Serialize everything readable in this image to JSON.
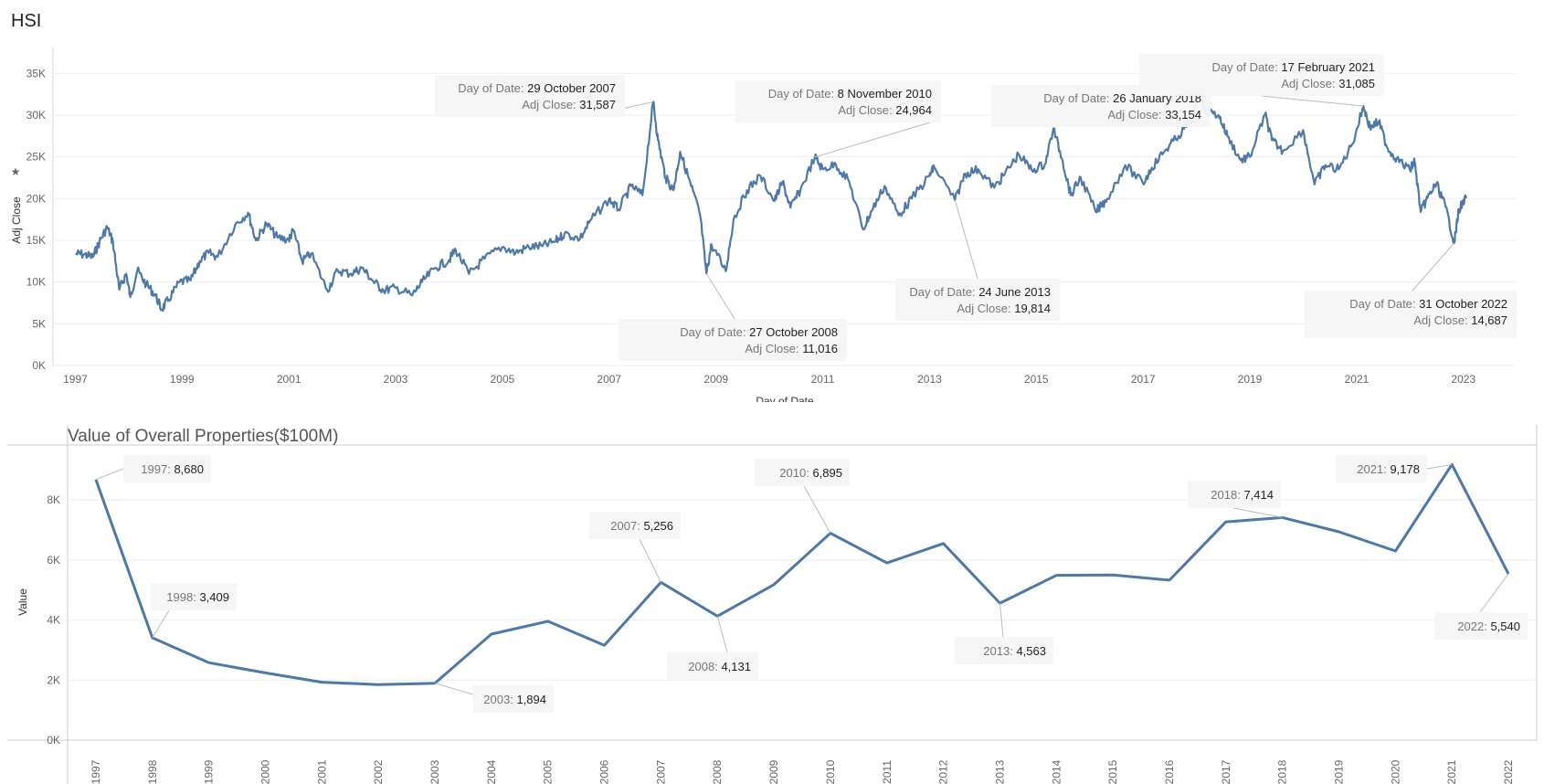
{
  "page": {
    "title": "HSI"
  },
  "chart_data": [
    {
      "type": "line",
      "title": "HSI",
      "xlabel": "Day of Date",
      "ylabel": "Adj Close",
      "xlim": [
        "1996-08-01",
        "2023-12-31"
      ],
      "ylim": [
        0,
        37000
      ],
      "x_ticks": [
        "1997",
        "1999",
        "2001",
        "2003",
        "2005",
        "2007",
        "2009",
        "2011",
        "2013",
        "2015",
        "2017",
        "2019",
        "2021",
        "2023"
      ],
      "y_ticks": [
        "0K",
        "5K",
        "10K",
        "15K",
        "20K",
        "25K",
        "30K",
        "35K"
      ],
      "series": [
        {
          "color": "#4e79a7",
          "points": [
            [
              "1997-01-02",
              13400
            ],
            [
              "1997-03-01",
              13300
            ],
            [
              "1997-05-01",
              13000
            ],
            [
              "1997-06-15",
              14800
            ],
            [
              "1997-08-07",
              16600
            ],
            [
              "1997-09-15",
              14800
            ],
            [
              "1997-10-28",
              9100
            ],
            [
              "1997-12-15",
              11000
            ],
            [
              "1998-01-12",
              8200
            ],
            [
              "1998-03-01",
              11400
            ],
            [
              "1998-05-01",
              9700
            ],
            [
              "1998-07-01",
              8500
            ],
            [
              "1998-08-13",
              6700
            ],
            [
              "1998-10-01",
              7900
            ],
            [
              "1998-12-15",
              10000
            ],
            [
              "1999-03-01",
              10200
            ],
            [
              "1999-05-01",
              12500
            ],
            [
              "1999-07-01",
              13500
            ],
            [
              "1999-09-01",
              13000
            ],
            [
              "1999-12-31",
              16900
            ],
            [
              "2000-03-28",
              18300
            ],
            [
              "2000-05-20",
              15000
            ],
            [
              "2000-08-01",
              17000
            ],
            [
              "2000-10-15",
              15300
            ],
            [
              "2000-12-31",
              15100
            ],
            [
              "2001-02-01",
              16200
            ],
            [
              "2001-04-01",
              12500
            ],
            [
              "2001-06-01",
              13400
            ],
            [
              "2001-09-21",
              9000
            ],
            [
              "2001-12-01",
              11400
            ],
            [
              "2002-03-01",
              11000
            ],
            [
              "2002-05-15",
              11700
            ],
            [
              "2002-08-01",
              10100
            ],
            [
              "2002-10-10",
              9000
            ],
            [
              "2003-01-01",
              9300
            ],
            [
              "2003-04-25",
              8400
            ],
            [
              "2003-07-01",
              10000
            ],
            [
              "2003-10-01",
              11700
            ],
            [
              "2003-12-31",
              12600
            ],
            [
              "2004-02-15",
              13900
            ],
            [
              "2004-05-17",
              10970
            ],
            [
              "2004-09-01",
              12800
            ],
            [
              "2004-12-31",
              14200
            ],
            [
              "2005-04-01",
              13500
            ],
            [
              "2005-07-01",
              14200
            ],
            [
              "2005-10-01",
              14300
            ],
            [
              "2005-12-31",
              14900
            ],
            [
              "2006-03-01",
              15800
            ],
            [
              "2006-06-15",
              15200
            ],
            [
              "2006-09-01",
              17500
            ],
            [
              "2006-12-31",
              19900
            ],
            [
              "2007-03-05",
              18700
            ],
            [
              "2007-06-01",
              21500
            ],
            [
              "2007-08-17",
              20400
            ],
            [
              "2007-10-29",
              31587
            ],
            [
              "2007-12-01",
              27000
            ],
            [
              "2008-01-22",
              22500
            ],
            [
              "2008-03-15",
              21000
            ],
            [
              "2008-05-01",
              25600
            ],
            [
              "2008-07-15",
              21500
            ],
            [
              "2008-09-15",
              18000
            ],
            [
              "2008-10-27",
              11016
            ],
            [
              "2008-12-01",
              14500
            ],
            [
              "2009-03-09",
              11300
            ],
            [
              "2009-05-01",
              17500
            ],
            [
              "2009-08-01",
              21000
            ],
            [
              "2009-11-01",
              22700
            ],
            [
              "2010-02-05",
              19700
            ],
            [
              "2010-04-01",
              22000
            ],
            [
              "2010-05-25",
              18900
            ],
            [
              "2010-08-01",
              21000
            ],
            [
              "2010-11-08",
              24964
            ],
            [
              "2011-01-01",
              23500
            ],
            [
              "2011-04-01",
              24100
            ],
            [
              "2011-07-01",
              22000
            ],
            [
              "2011-10-04",
              16300
            ],
            [
              "2011-12-01",
              18500
            ],
            [
              "2012-02-28",
              21500
            ],
            [
              "2012-06-04",
              18000
            ],
            [
              "2012-09-01",
              20000
            ],
            [
              "2012-12-31",
              22700
            ],
            [
              "2013-02-01",
              23800
            ],
            [
              "2013-06-24",
              19814
            ],
            [
              "2013-09-01",
              23000
            ],
            [
              "2013-12-01",
              23500
            ],
            [
              "2014-03-20",
              21300
            ],
            [
              "2014-06-01",
              23000
            ],
            [
              "2014-09-03",
              25300
            ],
            [
              "2014-12-01",
              23400
            ],
            [
              "2015-03-01",
              24100
            ],
            [
              "2015-04-28",
              28400
            ],
            [
              "2015-07-01",
              24500
            ],
            [
              "2015-08-25",
              20400
            ],
            [
              "2015-11-01",
              22500
            ],
            [
              "2016-02-12",
              18400
            ],
            [
              "2016-05-01",
              20000
            ],
            [
              "2016-09-01",
              24000
            ],
            [
              "2016-12-31",
              21800
            ],
            [
              "2017-03-01",
              23700
            ],
            [
              "2017-06-01",
              25800
            ],
            [
              "2017-09-01",
              27500
            ],
            [
              "2017-12-01",
              29500
            ],
            [
              "2018-01-26",
              33154
            ],
            [
              "2018-03-01",
              30500
            ],
            [
              "2018-06-01",
              30000
            ],
            [
              "2018-08-01",
              27500
            ],
            [
              "2018-10-30",
              24600
            ],
            [
              "2019-01-01",
              25000
            ],
            [
              "2019-04-15",
              30100
            ],
            [
              "2019-06-01",
              27000
            ],
            [
              "2019-08-15",
              25700
            ],
            [
              "2019-12-31",
              28200
            ],
            [
              "2020-03-19",
              21700
            ],
            [
              "2020-06-01",
              24000
            ],
            [
              "2020-09-01",
              23500
            ],
            [
              "2020-12-01",
              26500
            ],
            [
              "2021-02-17",
              31085
            ],
            [
              "2021-04-01",
              28500
            ],
            [
              "2021-06-01",
              29200
            ],
            [
              "2021-08-01",
              26000
            ],
            [
              "2021-10-01",
              24800
            ],
            [
              "2021-12-31",
              23400
            ],
            [
              "2022-02-01",
              24500
            ],
            [
              "2022-03-15",
              18400
            ],
            [
              "2022-05-01",
              20100
            ],
            [
              "2022-07-01",
              21800
            ],
            [
              "2022-09-01",
              19000
            ],
            [
              "2022-10-31",
              14687
            ],
            [
              "2022-12-01",
              18700
            ],
            [
              "2023-01-20",
              20000
            ]
          ]
        }
      ],
      "annotations": [
        {
          "date_label": "29 October 2007",
          "value_label": "31,587",
          "date": "2007-10-29",
          "value": 31587
        },
        {
          "date_label": "27 October 2008",
          "value_label": "11,016",
          "date": "2008-10-27",
          "value": 11016
        },
        {
          "date_label": "8 November 2010",
          "value_label": "24,964",
          "date": "2010-11-08",
          "value": 24964
        },
        {
          "date_label": "24 June 2013",
          "value_label": "19,814",
          "date": "2013-06-24",
          "value": 19814
        },
        {
          "date_label": "26 January 2018",
          "value_label": "33,154",
          "date": "2018-01-26",
          "value": 33154
        },
        {
          "date_label": "17 February 2021",
          "value_label": "31,085",
          "date": "2021-02-17",
          "value": 31085
        },
        {
          "date_label": "31 October 2022",
          "value_label": "14,687",
          "date": "2022-10-31",
          "value": 14687
        }
      ],
      "annotation_prefix_date": "Day of Date: ",
      "annotation_prefix_value": "Adj Close: "
    },
    {
      "type": "line",
      "title": "Value of Overall Properties($100M)",
      "xlabel": "",
      "ylabel": "Value",
      "ylim": [
        0,
        9800
      ],
      "y_ticks": [
        "0K",
        "2K",
        "4K",
        "6K",
        "8K"
      ],
      "categories": [
        "1997",
        "1998",
        "1999",
        "2000",
        "2001",
        "2002",
        "2003",
        "2004",
        "2005",
        "2006",
        "2007",
        "2008",
        "2009",
        "2010",
        "2011",
        "2012",
        "2013",
        "2014",
        "2015",
        "2016",
        "2017",
        "2018",
        "2019",
        "2020",
        "2021",
        "2022"
      ],
      "series": [
        {
          "color": "#4e79a7",
          "values": [
            8680,
            3409,
            2580,
            2240,
            1930,
            1850,
            1894,
            3530,
            3960,
            3160,
            5256,
            4131,
            5180,
            6895,
            5900,
            6550,
            4563,
            5490,
            5500,
            5330,
            7270,
            7414,
            6940,
            6300,
            9178,
            5540
          ]
        }
      ],
      "annotations": [
        {
          "label": "1997",
          "value_label": "8,680"
        },
        {
          "label": "1998",
          "value_label": "3,409"
        },
        {
          "label": "2003",
          "value_label": "1,894"
        },
        {
          "label": "2007",
          "value_label": "5,256"
        },
        {
          "label": "2008",
          "value_label": "4,131"
        },
        {
          "label": "2010",
          "value_label": "6,895"
        },
        {
          "label": "2013",
          "value_label": "4,563"
        },
        {
          "label": "2018",
          "value_label": "7,414"
        },
        {
          "label": "2021",
          "value_label": "9,178"
        },
        {
          "label": "2022",
          "value_label": "5,540"
        }
      ]
    }
  ]
}
